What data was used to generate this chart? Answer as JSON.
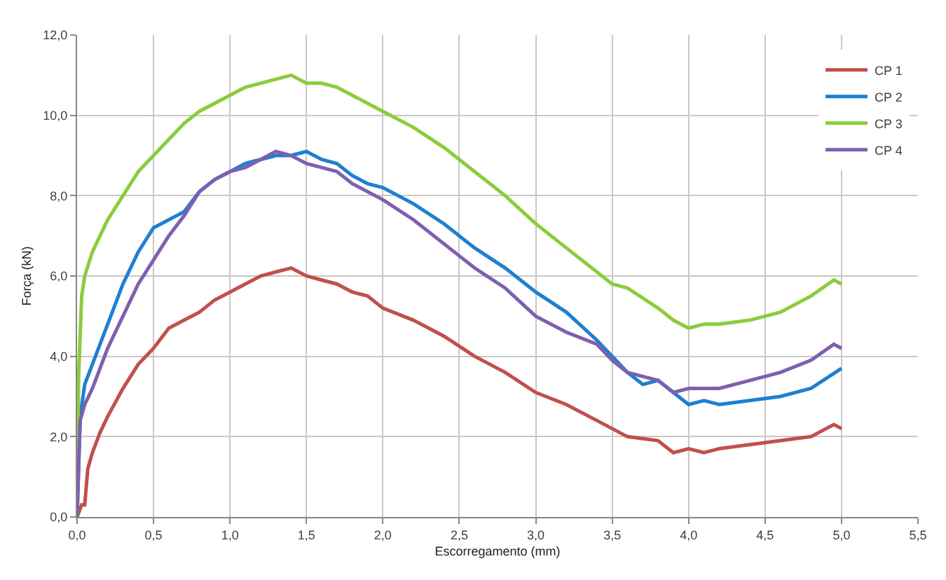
{
  "chart_data": {
    "type": "line",
    "xlabel": "Escorregamento (mm)",
    "ylabel": "Força (kN)",
    "xlim": [
      0,
      5.5
    ],
    "ylim": [
      0,
      12
    ],
    "xticks": [
      {
        "value": 0,
        "label": "0,0"
      },
      {
        "value": 0.5,
        "label": "0,5"
      },
      {
        "value": 1,
        "label": "1,0"
      },
      {
        "value": 1.5,
        "label": "1,5"
      },
      {
        "value": 2,
        "label": "2,0"
      },
      {
        "value": 2.5,
        "label": "2,5"
      },
      {
        "value": 3,
        "label": "3,0"
      },
      {
        "value": 3.5,
        "label": "3,5"
      },
      {
        "value": 4,
        "label": "4,0"
      },
      {
        "value": 4.5,
        "label": "4,5"
      },
      {
        "value": 5,
        "label": "5,0"
      },
      {
        "value": 5.5,
        "label": "5,5"
      }
    ],
    "yticks": [
      {
        "value": 0,
        "label": "0,0"
      },
      {
        "value": 2,
        "label": "2,0"
      },
      {
        "value": 4,
        "label": "4,0"
      },
      {
        "value": 6,
        "label": "6,0"
      },
      {
        "value": 8,
        "label": "8,0"
      },
      {
        "value": 10,
        "label": "10,0"
      },
      {
        "value": 12,
        "label": "12,0"
      }
    ],
    "grid": true,
    "legend": "top right",
    "marker": "none",
    "line_style": "solid",
    "series": [
      {
        "name": "CP 1",
        "color": "#c0504d",
        "x": [
          0,
          0.03,
          0.05,
          0.07,
          0.1,
          0.15,
          0.2,
          0.3,
          0.4,
          0.5,
          0.6,
          0.7,
          0.8,
          0.9,
          1.0,
          1.1,
          1.2,
          1.3,
          1.4,
          1.5,
          1.6,
          1.7,
          1.8,
          1.9,
          2.0,
          2.2,
          2.4,
          2.6,
          2.8,
          3.0,
          3.2,
          3.4,
          3.5,
          3.6,
          3.8,
          3.9,
          4.0,
          4.1,
          4.2,
          4.4,
          4.6,
          4.8,
          4.95,
          5.0
        ],
        "values": [
          0,
          0.3,
          0.3,
          1.2,
          1.6,
          2.1,
          2.5,
          3.2,
          3.8,
          4.2,
          4.7,
          4.9,
          5.1,
          5.4,
          5.6,
          5.8,
          6.0,
          6.1,
          6.2,
          6.0,
          5.9,
          5.8,
          5.6,
          5.5,
          5.2,
          4.9,
          4.5,
          4.0,
          3.6,
          3.1,
          2.8,
          2.4,
          2.2,
          2.0,
          1.9,
          1.6,
          1.7,
          1.6,
          1.7,
          1.8,
          1.9,
          2.0,
          2.3,
          2.2
        ]
      },
      {
        "name": "CP 2",
        "color": "#1f7fd0",
        "x": [
          0,
          0.02,
          0.05,
          0.1,
          0.2,
          0.3,
          0.4,
          0.5,
          0.6,
          0.7,
          0.8,
          0.9,
          1.0,
          1.1,
          1.2,
          1.3,
          1.4,
          1.5,
          1.6,
          1.7,
          1.8,
          1.9,
          2.0,
          2.2,
          2.4,
          2.6,
          2.8,
          3.0,
          3.2,
          3.4,
          3.5,
          3.6,
          3.7,
          3.8,
          3.9,
          4.0,
          4.1,
          4.2,
          4.4,
          4.6,
          4.8,
          5.0
        ],
        "values": [
          0,
          2.5,
          3.3,
          3.8,
          4.8,
          5.8,
          6.6,
          7.2,
          7.4,
          7.6,
          8.1,
          8.4,
          8.6,
          8.8,
          8.9,
          9.0,
          9.0,
          9.1,
          8.9,
          8.8,
          8.5,
          8.3,
          8.2,
          7.8,
          7.3,
          6.7,
          6.2,
          5.6,
          5.1,
          4.4,
          4.0,
          3.6,
          3.3,
          3.4,
          3.1,
          2.8,
          2.9,
          2.8,
          2.9,
          3.0,
          3.2,
          3.7
        ]
      },
      {
        "name": "CP 3",
        "color": "#8ccc3c",
        "x": [
          0,
          0.01,
          0.03,
          0.05,
          0.1,
          0.2,
          0.3,
          0.4,
          0.5,
          0.6,
          0.7,
          0.8,
          0.9,
          1.0,
          1.1,
          1.2,
          1.3,
          1.4,
          1.5,
          1.6,
          1.7,
          1.8,
          1.9,
          2.0,
          2.2,
          2.4,
          2.6,
          2.8,
          3.0,
          3.2,
          3.4,
          3.5,
          3.6,
          3.8,
          3.9,
          4.0,
          4.1,
          4.2,
          4.4,
          4.6,
          4.8,
          4.95,
          5.0
        ],
        "values": [
          0,
          3.5,
          5.5,
          6.0,
          6.6,
          7.4,
          8.0,
          8.6,
          9.0,
          9.4,
          9.8,
          10.1,
          10.3,
          10.5,
          10.7,
          10.8,
          10.9,
          11.0,
          10.8,
          10.8,
          10.7,
          10.5,
          10.3,
          10.1,
          9.7,
          9.2,
          8.6,
          8.0,
          7.3,
          6.7,
          6.1,
          5.8,
          5.7,
          5.2,
          4.9,
          4.7,
          4.8,
          4.8,
          4.9,
          5.1,
          5.5,
          5.9,
          5.8
        ]
      },
      {
        "name": "CP 4",
        "color": "#7f5fb0",
        "x": [
          0,
          0.02,
          0.05,
          0.1,
          0.2,
          0.3,
          0.4,
          0.5,
          0.6,
          0.7,
          0.8,
          0.9,
          1.0,
          1.1,
          1.2,
          1.3,
          1.4,
          1.5,
          1.6,
          1.7,
          1.8,
          1.9,
          2.0,
          2.2,
          2.4,
          2.6,
          2.8,
          3.0,
          3.2,
          3.4,
          3.5,
          3.6,
          3.7,
          3.8,
          3.9,
          4.0,
          4.2,
          4.4,
          4.6,
          4.8,
          4.95,
          5.0
        ],
        "values": [
          0,
          2.4,
          2.8,
          3.2,
          4.2,
          5.0,
          5.8,
          6.4,
          7.0,
          7.5,
          8.1,
          8.4,
          8.6,
          8.7,
          8.9,
          9.1,
          9.0,
          8.8,
          8.7,
          8.6,
          8.3,
          8.1,
          7.9,
          7.4,
          6.8,
          6.2,
          5.7,
          5.0,
          4.6,
          4.3,
          3.9,
          3.6,
          3.5,
          3.4,
          3.1,
          3.2,
          3.2,
          3.4,
          3.6,
          3.9,
          4.3,
          4.2
        ]
      }
    ]
  }
}
